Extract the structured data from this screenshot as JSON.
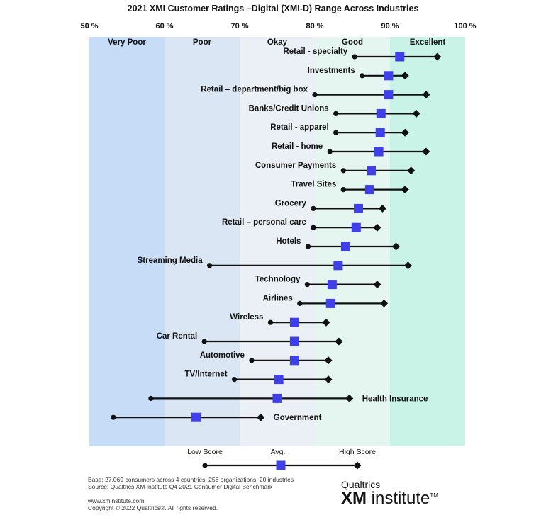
{
  "chart_data": {
    "type": "range-dot",
    "title": "2021 XMI Customer Ratings –Digital (XMI-D) Range Across Industries",
    "x_ticks": [
      "50 %",
      "60 %",
      "70 %",
      "80 %",
      "90 %",
      "100 %"
    ],
    "xlim": [
      50,
      100
    ],
    "bands": [
      {
        "label": "Very Poor",
        "from": 50,
        "to": 60,
        "color": "#c6dcf7"
      },
      {
        "label": "Poor",
        "from": 60,
        "to": 70,
        "color": "#dbe6f4"
      },
      {
        "label": "Okay",
        "from": 70,
        "to": 80,
        "color": "#eaf0f5"
      },
      {
        "label": "Good",
        "from": 80,
        "to": 90,
        "color": "#e5f6f1"
      },
      {
        "label": "Excellent",
        "from": 90,
        "to": 100,
        "color": "#c8f3e6"
      }
    ],
    "industries": [
      {
        "name": "Retail - specialty",
        "low": 85.3,
        "avg": 91.3,
        "high": 96.3
      },
      {
        "name": "Investments",
        "low": 86.3,
        "avg": 89.8,
        "high": 92.0
      },
      {
        "name": "Retail – department/big box",
        "low": 80.0,
        "avg": 89.8,
        "high": 94.8
      },
      {
        "name": "Banks/Credit Unions",
        "low": 82.8,
        "avg": 88.8,
        "high": 93.5
      },
      {
        "name": "Retail - apparel",
        "low": 82.8,
        "avg": 88.7,
        "high": 92.0
      },
      {
        "name": "Retail - home",
        "low": 82.0,
        "avg": 88.5,
        "high": 94.8
      },
      {
        "name": "Consumer Payments",
        "low": 83.8,
        "avg": 87.5,
        "high": 92.8
      },
      {
        "name": "Travel Sites",
        "low": 83.8,
        "avg": 87.3,
        "high": 92.0
      },
      {
        "name": "Grocery",
        "low": 79.8,
        "avg": 85.8,
        "high": 89.0
      },
      {
        "name": "Retail – personal care",
        "low": 79.8,
        "avg": 85.5,
        "high": 88.3
      },
      {
        "name": "Hotels",
        "low": 79.1,
        "avg": 84.1,
        "high": 90.8
      },
      {
        "name": "Streaming Media",
        "low": 66.0,
        "avg": 83.1,
        "high": 92.4
      },
      {
        "name": "Technology",
        "low": 79.0,
        "avg": 82.3,
        "high": 88.3
      },
      {
        "name": "Airlines",
        "low": 78.0,
        "avg": 82.1,
        "high": 89.2
      },
      {
        "name": "Wireless",
        "low": 74.1,
        "avg": 77.3,
        "high": 81.5
      },
      {
        "name": "Car Rental",
        "low": 65.3,
        "avg": 77.3,
        "high": 83.2
      },
      {
        "name": "Automotive",
        "low": 71.6,
        "avg": 77.3,
        "high": 81.8
      },
      {
        "name": "TV/Internet",
        "low": 69.3,
        "avg": 75.2,
        "high": 81.8
      },
      {
        "name": "Health Insurance",
        "low": 58.2,
        "avg": 75.0,
        "high": 84.6
      },
      {
        "name": "Government",
        "low": 53.2,
        "avg": 64.2,
        "high": 72.8
      }
    ],
    "legend": {
      "low_label": "Low Score",
      "avg_label": "Avg.",
      "high_label": "High Score"
    }
  },
  "footer": {
    "base": "Base: 27,069 consumers across 4 countries, 256 organizations, 20 industries",
    "source": "Source: Qualtrics XM Institute Q4 2021 Consumer Digital Benchmark",
    "website": "www.xminstitute.com",
    "copyright": "Copyright © 2022 Qualtrics®. All rights reserved."
  },
  "brand": {
    "company": "Qualtrics",
    "xm": "XM",
    "institute": "institute",
    "tm": "TM"
  },
  "colors": {
    "avg_marker": "#4040e8",
    "line": "#111111"
  }
}
